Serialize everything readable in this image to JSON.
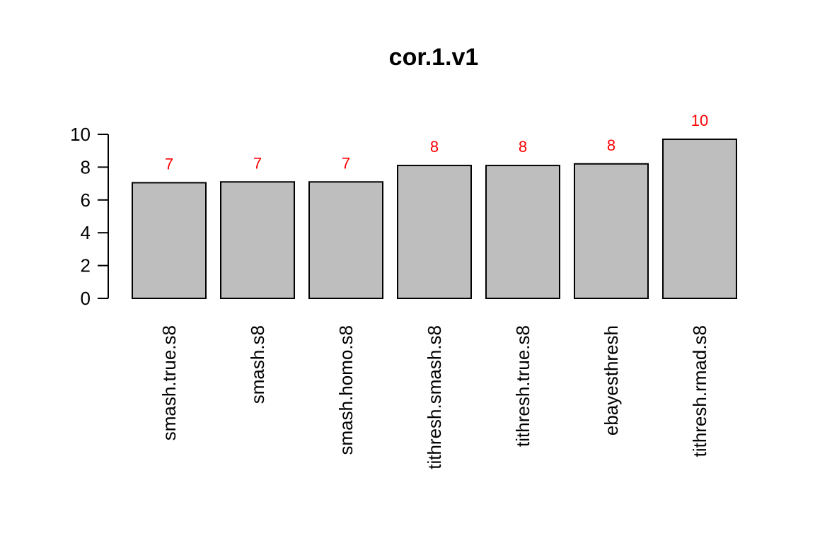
{
  "chart_data": {
    "type": "bar",
    "title": "cor.1.v1",
    "xlabel": "",
    "ylabel": "",
    "categories": [
      "smash.true.s8",
      "smash.s8",
      "smash.homo.s8",
      "tithresh.smash.s8",
      "tithresh.true.s8",
      "ebayesthresh",
      "tithresh.rmad.s8"
    ],
    "values": [
      7.05,
      7.1,
      7.1,
      8.1,
      8.1,
      8.2,
      9.7
    ],
    "data_labels": [
      "7",
      "7",
      "7",
      "8",
      "8",
      "8",
      "10"
    ],
    "yticks": [
      "0",
      "2",
      "4",
      "6",
      "8",
      "10"
    ],
    "ylim": [
      0,
      10
    ],
    "grid": false,
    "legend": "none",
    "bar_color": "#bebebe",
    "label_color": "#ff0000"
  }
}
